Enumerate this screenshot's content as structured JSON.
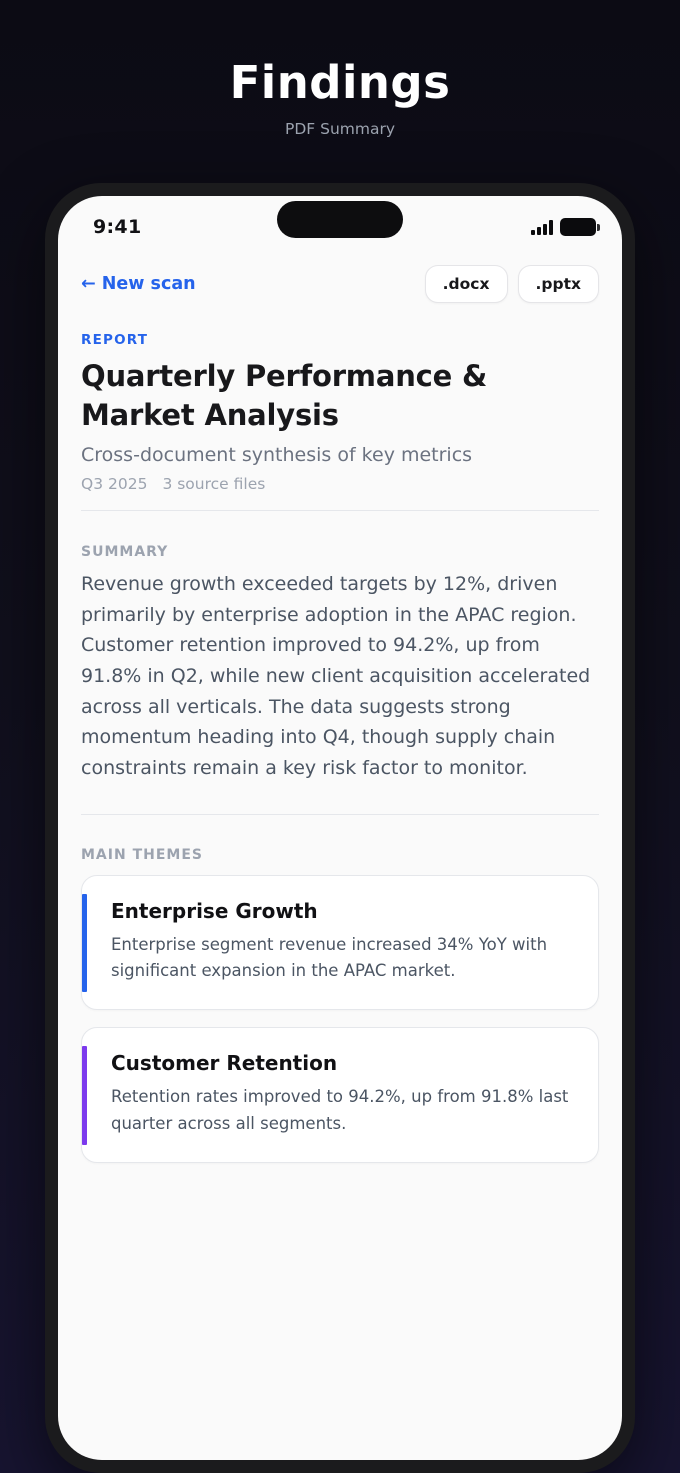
{
  "app": {
    "title": "Findings",
    "subtitle": "PDF Summary"
  },
  "phone": {
    "status_bar": {
      "time": "9:41",
      "icons": [
        "cellular-signal-icon",
        "battery-icon"
      ]
    },
    "toolbar": {
      "back_label": "← New scan",
      "export_buttons": [
        {
          "label": ".docx"
        },
        {
          "label": ".pptx"
        }
      ]
    },
    "report": {
      "eyebrow": "REPORT",
      "title": "Quarterly Performance & Market Analysis",
      "dek": "Cross-document synthesis of key metrics",
      "period": "Q3 2025",
      "sources": "3 source files"
    },
    "summary": {
      "label": "SUMMARY",
      "text": "Revenue growth exceeded targets by 12%, driven primarily by enterprise adoption in the APAC region. Customer retention improved to 94.2%, up from 91.8% in Q2, while new client acquisition accelerated across all verticals. The data suggests strong momentum heading into Q4, though supply chain constraints remain a key risk factor to monitor."
    },
    "themes": {
      "label": "MAIN THEMES",
      "cards": [
        {
          "title": "Enterprise Growth",
          "body": "Enterprise segment revenue increased 34% YoY with significant expansion in the APAC market.",
          "accent_color": "#2563eb"
        },
        {
          "title": "Customer Retention",
          "body": "Retention rates improved to 94.2%, up from 91.8% last quarter across all segments.",
          "accent_color": "#7c3aed"
        }
      ]
    }
  },
  "colors": {
    "accent_blue": "#2563eb",
    "accent_purple": "#7c3aed",
    "background_top": "#0c0b14",
    "background_bottom": "#171430",
    "screen": "#fafafa",
    "frame": "#1b1b1d"
  }
}
